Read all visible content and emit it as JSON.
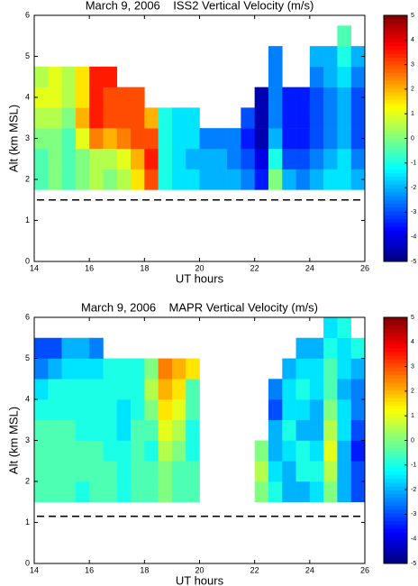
{
  "chart_data": [
    {
      "type": "heatmap",
      "title": "March 9, 2006    ISS2 Vertical Velocity (m/s)",
      "x_label": "UT hours",
      "y_label": "Alt (km MSL)",
      "xlim": [
        14,
        26
      ],
      "xticks": [
        14,
        16,
        18,
        20,
        22,
        24,
        26
      ],
      "ylim": [
        0,
        6
      ],
      "yticks": [
        0,
        1,
        2,
        3,
        4,
        5,
        6
      ],
      "x_edges": [
        14,
        14.5,
        15,
        15.5,
        16,
        16.5,
        17,
        17.5,
        18,
        18.5,
        19,
        19.5,
        20,
        20.5,
        21,
        21.5,
        22,
        22.5,
        23,
        23.5,
        24,
        24.5,
        25,
        25.5,
        26
      ],
      "y_edges": [
        1.75,
        2.25,
        2.75,
        3.25,
        3.75,
        4.25,
        4.75,
        5.25,
        5.75
      ],
      "z": [
        [
          -0.5,
          0,
          -0.5,
          0,
          0.5,
          0,
          0.5,
          1.5,
          3,
          -1,
          -1.5,
          -1.5,
          -2,
          -2,
          -2,
          -2.5,
          -3.5,
          0,
          -2,
          -2.5,
          -2,
          -1.5,
          -1.5,
          -2
        ],
        [
          -0.5,
          0,
          -0.5,
          0,
          0.5,
          0.5,
          1,
          2,
          3.5,
          -1,
          -1.5,
          -2,
          -2,
          -2,
          -2.5,
          -3,
          -4,
          -1,
          -3,
          -3,
          -2.5,
          -2,
          -1.5,
          -2.5
        ],
        [
          0,
          0,
          -0.5,
          1,
          2.5,
          2,
          2.5,
          3,
          3,
          -1,
          -1.5,
          -1.5,
          -2.5,
          -2.5,
          -2.5,
          -3.5,
          -4.5,
          -2,
          -3.5,
          -3.5,
          -3,
          -2.5,
          -2,
          -3
        ],
        [
          0.5,
          0.5,
          0,
          2,
          3.5,
          3,
          3,
          3,
          2,
          -1,
          -1.5,
          -1.5,
          null,
          null,
          null,
          -3,
          -4.5,
          -2.5,
          -3.5,
          -3.5,
          -3,
          -2.5,
          -2,
          -3
        ],
        [
          1,
          1,
          0.5,
          1.5,
          3.5,
          3,
          3,
          3,
          null,
          null,
          null,
          null,
          null,
          null,
          null,
          null,
          -4.5,
          -2.5,
          -3.5,
          -3.5,
          -3,
          -2.5,
          -2,
          -3
        ],
        [
          0.5,
          1,
          0.5,
          1.5,
          3.5,
          3.5,
          null,
          null,
          null,
          null,
          null,
          null,
          null,
          null,
          null,
          null,
          null,
          -2.5,
          null,
          null,
          -2.5,
          -2,
          -1.5,
          -2.5
        ],
        [
          null,
          null,
          null,
          null,
          null,
          null,
          null,
          null,
          null,
          null,
          null,
          null,
          null,
          null,
          null,
          null,
          null,
          -2.5,
          null,
          null,
          -2,
          -2,
          -1,
          -2
        ],
        [
          null,
          null,
          null,
          null,
          null,
          null,
          null,
          null,
          null,
          null,
          null,
          null,
          null,
          null,
          null,
          null,
          null,
          null,
          null,
          null,
          null,
          null,
          -0.5,
          null
        ]
      ],
      "hline": 1.5,
      "clim": [
        -5,
        5
      ],
      "cticks": [
        -5,
        -4,
        -3,
        -2,
        -1,
        0,
        1,
        2,
        3,
        4,
        5
      ],
      "colormap": "jet"
    },
    {
      "type": "heatmap",
      "title": "March 9, 2006    MAPR Vertical Velocity (m/s)",
      "x_label": "UT hours",
      "y_label": "Alt (km MSL)",
      "xlim": [
        14,
        26
      ],
      "xticks": [
        14,
        16,
        18,
        20,
        22,
        24,
        26
      ],
      "ylim": [
        0,
        6
      ],
      "yticks": [
        0,
        1,
        2,
        3,
        4,
        5,
        6
      ],
      "x_edges": [
        14,
        14.5,
        15,
        15.5,
        16,
        16.5,
        17,
        17.5,
        18,
        18.5,
        19,
        19.5,
        20,
        20.5,
        21,
        21.5,
        22,
        22.5,
        23,
        23.5,
        24,
        24.5,
        25,
        25.5,
        26
      ],
      "y_edges": [
        1.5,
        2,
        2.5,
        3,
        3.5,
        4,
        4.5,
        5,
        5.5,
        6
      ],
      "z": [
        [
          -0.5,
          -0.5,
          -0.5,
          -1,
          -0.5,
          -0.5,
          -1,
          -0.5,
          -0.5,
          0,
          -0.5,
          -0.5,
          null,
          null,
          null,
          null,
          0,
          -1,
          -2,
          -2,
          -1.5,
          0,
          -2,
          -3
        ],
        [
          -0.5,
          -0.5,
          -0.5,
          -0.5,
          -0.5,
          -0.5,
          -1,
          -0.5,
          -0.5,
          0,
          -0.5,
          -0.5,
          null,
          null,
          null,
          null,
          0.5,
          -1.5,
          -2,
          -1,
          -1,
          0.5,
          -2,
          -3
        ],
        [
          -0.5,
          -0.5,
          -0.5,
          -0.5,
          -0.5,
          -1,
          -1,
          -0.5,
          -1,
          0.5,
          0,
          -1,
          null,
          null,
          null,
          null,
          0,
          -2,
          -1.5,
          -1,
          -1.5,
          1,
          -2,
          -3.5
        ],
        [
          -0.5,
          -0.5,
          -0.5,
          -1,
          -1,
          -1,
          -1.5,
          -0.5,
          -0.5,
          1,
          0.5,
          -1,
          null,
          null,
          null,
          null,
          null,
          -2,
          -1,
          -2,
          -2,
          0.5,
          -1.5,
          -3
        ],
        [
          -1,
          -1,
          -1,
          -1,
          -1,
          -1,
          -1.5,
          -1,
          0,
          1.5,
          1,
          -0.5,
          null,
          null,
          null,
          null,
          null,
          -3,
          -1.5,
          -1.5,
          -2,
          0,
          -1.5,
          -2.5
        ],
        [
          -1.5,
          -1,
          -1,
          -1,
          -1,
          -1,
          -1,
          -1,
          0.5,
          2,
          1.5,
          -0.5,
          null,
          null,
          null,
          null,
          null,
          -2.5,
          -1.5,
          -1,
          -1.5,
          -0.5,
          -2,
          -2.5
        ],
        [
          -2.5,
          -2,
          -1.5,
          -1.5,
          -1.5,
          -1,
          -1,
          -1,
          0,
          2.5,
          2,
          1.5,
          null,
          null,
          null,
          null,
          null,
          null,
          -2,
          -1.5,
          -1.5,
          -0.5,
          -1.5,
          -2
        ],
        [
          -3,
          -3,
          -2,
          -2,
          -2.5,
          null,
          null,
          null,
          null,
          null,
          null,
          null,
          null,
          null,
          null,
          null,
          null,
          null,
          null,
          -2,
          -2,
          -1,
          -1.5,
          -1
        ],
        [
          null,
          null,
          null,
          null,
          null,
          null,
          null,
          null,
          null,
          null,
          null,
          null,
          null,
          null,
          null,
          null,
          null,
          null,
          null,
          null,
          null,
          -1.5,
          -1,
          null
        ]
      ],
      "hline": 1.15,
      "clim": [
        -5,
        5
      ],
      "cticks": [
        -5,
        -4,
        -3,
        -2,
        -1,
        0,
        1,
        2,
        3,
        4,
        5
      ],
      "colormap": "jet"
    }
  ]
}
